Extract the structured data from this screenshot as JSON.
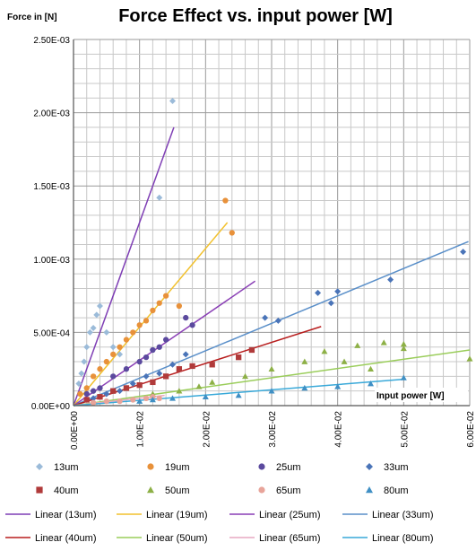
{
  "chart_data": {
    "type": "scatter",
    "title": "Force Effect vs. input power [W]",
    "ylabel": "Force in [N]",
    "xlabel": "Input power [W]",
    "xlim": [
      0,
      0.06
    ],
    "ylim": [
      0,
      0.0025
    ],
    "x_ticks": [
      "0.00E+00",
      "1.00E-02",
      "2.00E-02",
      "3.00E-02",
      "4.00E-02",
      "5.00E-02",
      "6.00E-02"
    ],
    "y_ticks": [
      "0.00E+00",
      "5.00E-04",
      "1.00E-03",
      "1.50E-03",
      "2.00E-03",
      "2.50E-03"
    ],
    "grid": true,
    "legend_position": "bottom",
    "series": [
      {
        "name": "13um",
        "marker": "diamond",
        "color": "#9BBBD9",
        "points": [
          [
            0.0008,
            0.00015
          ],
          [
            0.0012,
            0.00022
          ],
          [
            0.0016,
            0.0003
          ],
          [
            0.002,
            0.0004
          ],
          [
            0.0025,
            0.0005
          ],
          [
            0.003,
            0.00053
          ],
          [
            0.0035,
            0.00062
          ],
          [
            0.004,
            0.00068
          ],
          [
            0.005,
            0.0005
          ],
          [
            0.006,
            0.0004
          ],
          [
            0.007,
            0.00035
          ],
          [
            0.012,
            0.00038
          ],
          [
            0.013,
            0.00142
          ],
          [
            0.015,
            0.00208
          ]
        ]
      },
      {
        "name": "19um",
        "marker": "circle",
        "color": "#E8913A",
        "points": [
          [
            0.001,
            8e-05
          ],
          [
            0.002,
            0.00012
          ],
          [
            0.003,
            0.0002
          ],
          [
            0.004,
            0.00025
          ],
          [
            0.005,
            0.0003
          ],
          [
            0.006,
            0.00035
          ],
          [
            0.007,
            0.0004
          ],
          [
            0.008,
            0.00045
          ],
          [
            0.009,
            0.0005
          ],
          [
            0.01,
            0.00055
          ],
          [
            0.011,
            0.00058
          ],
          [
            0.012,
            0.00065
          ],
          [
            0.013,
            0.0007
          ],
          [
            0.014,
            0.00075
          ],
          [
            0.016,
            0.00068
          ],
          [
            0.023,
            0.0014
          ],
          [
            0.024,
            0.00118
          ]
        ]
      },
      {
        "name": "25um",
        "marker": "circle",
        "color": "#5B4A9E",
        "points": [
          [
            0.002,
            8e-05
          ],
          [
            0.003,
            0.0001
          ],
          [
            0.004,
            0.00012
          ],
          [
            0.006,
            0.0002
          ],
          [
            0.008,
            0.00025
          ],
          [
            0.01,
            0.0003
          ],
          [
            0.011,
            0.00033
          ],
          [
            0.012,
            0.00038
          ],
          [
            0.013,
            0.0004
          ],
          [
            0.014,
            0.00045
          ],
          [
            0.017,
            0.0006
          ],
          [
            0.018,
            0.00055
          ]
        ]
      },
      {
        "name": "33um",
        "marker": "diamond",
        "color": "#4A74B8",
        "points": [
          [
            0.003,
            5e-05
          ],
          [
            0.005,
            8e-05
          ],
          [
            0.007,
            0.0001
          ],
          [
            0.009,
            0.00015
          ],
          [
            0.011,
            0.0002
          ],
          [
            0.013,
            0.00022
          ],
          [
            0.015,
            0.00028
          ],
          [
            0.017,
            0.00035
          ],
          [
            0.029,
            0.0006
          ],
          [
            0.031,
            0.00058
          ],
          [
            0.037,
            0.00077
          ],
          [
            0.039,
            0.0007
          ],
          [
            0.04,
            0.00078
          ],
          [
            0.048,
            0.00086
          ],
          [
            0.059,
            0.00105
          ]
        ]
      },
      {
        "name": "40um",
        "marker": "square",
        "color": "#B03A3A",
        "points": [
          [
            0.002,
            4e-05
          ],
          [
            0.004,
            6e-05
          ],
          [
            0.006,
            0.0001
          ],
          [
            0.008,
            0.00012
          ],
          [
            0.01,
            0.00014
          ],
          [
            0.012,
            0.00016
          ],
          [
            0.014,
            0.0002
          ],
          [
            0.016,
            0.00025
          ],
          [
            0.018,
            0.00027
          ],
          [
            0.021,
            0.00028
          ],
          [
            0.025,
            0.00033
          ],
          [
            0.027,
            0.00038
          ]
        ]
      },
      {
        "name": "50um",
        "marker": "triangle",
        "color": "#8DB046",
        "points": [
          [
            0.012,
            8e-05
          ],
          [
            0.016,
            0.0001
          ],
          [
            0.019,
            0.00013
          ],
          [
            0.021,
            0.00016
          ],
          [
            0.026,
            0.0002
          ],
          [
            0.03,
            0.00025
          ],
          [
            0.035,
            0.0003
          ],
          [
            0.038,
            0.00037
          ],
          [
            0.041,
            0.0003
          ],
          [
            0.043,
            0.00041
          ],
          [
            0.045,
            0.00025
          ],
          [
            0.047,
            0.00043
          ],
          [
            0.05,
            0.00042
          ],
          [
            0.05,
            0.00039
          ],
          [
            0.06,
            0.00032
          ]
        ]
      },
      {
        "name": "65um",
        "marker": "circle",
        "color": "#E8A49A",
        "points": [
          [
            0.003,
            2e-05
          ],
          [
            0.005,
            3e-05
          ],
          [
            0.007,
            3e-05
          ],
          [
            0.009,
            4e-05
          ],
          [
            0.011,
            5e-05
          ],
          [
            0.012,
            6e-05
          ],
          [
            0.013,
            5e-05
          ]
        ]
      },
      {
        "name": "80um",
        "marker": "triangle",
        "color": "#3F8FC4",
        "points": [
          [
            0.01,
            3e-05
          ],
          [
            0.012,
            4e-05
          ],
          [
            0.015,
            5e-05
          ],
          [
            0.02,
            6e-05
          ],
          [
            0.025,
            7e-05
          ],
          [
            0.03,
            0.0001
          ],
          [
            0.035,
            0.00012
          ],
          [
            0.04,
            0.00013
          ],
          [
            0.045,
            0.00015
          ],
          [
            0.05,
            0.00019
          ]
        ]
      }
    ],
    "trendlines": [
      {
        "name": "Linear (13um)",
        "color": "#7F3FB5",
        "x": [
          0,
          0.0152
        ],
        "y": [
          0,
          0.0019
        ]
      },
      {
        "name": "Linear (19um)",
        "color": "#F2C12E",
        "x": [
          0,
          0.0233
        ],
        "y": [
          0,
          0.00125
        ]
      },
      {
        "name": "Linear (25um)",
        "color": "#8A3FB5",
        "x": [
          0,
          0.0275
        ],
        "y": [
          0,
          0.00085
        ]
      },
      {
        "name": "Linear (33um)",
        "color": "#5A8FC9",
        "x": [
          0,
          0.0598
        ],
        "y": [
          0,
          0.00112
        ]
      },
      {
        "name": "Linear (40um)",
        "color": "#B81E1E",
        "x": [
          0,
          0.0375
        ],
        "y": [
          0,
          0.00054
        ]
      },
      {
        "name": "Linear (50um)",
        "color": "#9ACD5A",
        "x": [
          0,
          0.06
        ],
        "y": [
          0,
          0.00038
        ]
      },
      {
        "name": "Linear (65um)",
        "color": "#E7A9C2",
        "x": [
          0,
          0.0138
        ],
        "y": [
          0,
          7e-05
        ]
      },
      {
        "name": "Linear (80um)",
        "color": "#39A9D9",
        "x": [
          0,
          0.05
        ],
        "y": [
          0,
          0.00018
        ]
      }
    ]
  }
}
